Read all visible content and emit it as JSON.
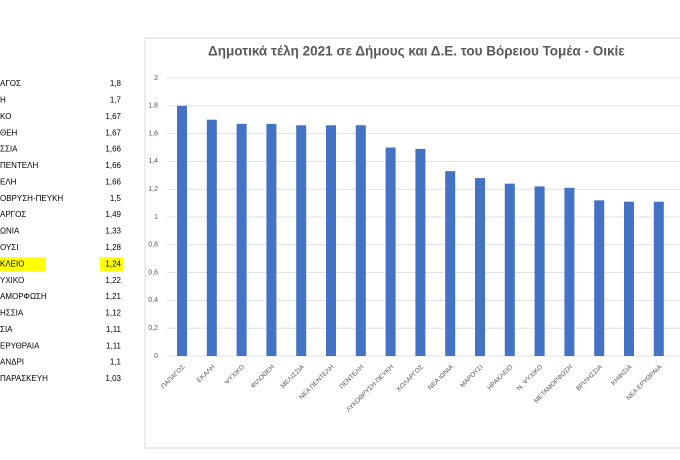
{
  "table": {
    "rows": [
      [
        "ΑΓΟΣ",
        "1,8"
      ],
      [
        "Η",
        "1,7"
      ],
      [
        "ΚΟ",
        "1,67"
      ],
      [
        "ΘΕΗ",
        "1,67"
      ],
      [
        "ΣΣΙΑ",
        "1,66"
      ],
      [
        "ΠΕΝΤΕΛΗ",
        "1,66"
      ],
      [
        "ΕΛΗ",
        "1,66"
      ],
      [
        "ΟΒΡΥΣΗ-ΠΕΥΚΗ",
        "1,5"
      ],
      [
        "ΑΡΓΟΣ",
        "1,49"
      ],
      [
        "ΩΝΙΑ",
        "1,33"
      ],
      [
        "ΟΥΣΙ",
        "1,28"
      ],
      [
        "ΚΛΕΙΟ",
        "1,24"
      ],
      [
        "ΥΧΙΚΟ",
        "1,22"
      ],
      [
        "ΑΜΟΡΦΩΣΗ",
        "1,21"
      ],
      [
        "ΗΣΣΙΑ",
        "1,12"
      ],
      [
        "ΣΙΑ",
        "1,11"
      ],
      [
        "ΕΡΥΘΡΑΙΑ",
        "1,11"
      ],
      [
        "ΑΝΔΡΙ",
        "1,1"
      ],
      [
        "ΠΑΡΑΣΚΕΥΗ",
        "1,03"
      ]
    ],
    "highlight_row": 11,
    "highlight_color": "#ffff00"
  },
  "chart_data": {
    "type": "bar",
    "title": "Δημοτικά τέλη 2021 σε Δήμους και Δ.Ε. του Βόρειου Τομέα - Οικίε",
    "categories": [
      "ΠΑΠΑΓΟΣ",
      "ΕΚΑΛΗ",
      "ΨΥΧΙΚΟ",
      "ΦΙΛΟΘΕΗ",
      "ΜΕΛΙΣΣΙΑ",
      "ΝΕΑ ΠΕΝΤΕΛΗ",
      "ΠΕΝΤΕΛΗ",
      "ΛΥΚΟΒΡΥΣΗ-ΠΕΥΚΗ",
      "ΧΟΛΑΡΓΟΣ",
      "ΝΕΑ ΙΩΝΙΑ",
      "ΜΑΡΟΥΣΙ",
      "ΗΡΑΚΛΕΙΟ",
      "Ν. ΨΥΧΙΚΟ",
      "ΜΕΤΑΜΟΡΦΩΣΗ",
      "ΒΡΙΛΗΣΣΙΑ",
      "ΚΗΦΙΣΙΑ",
      "ΝΕΑ ΕΡΥΘΡΑΙΑ"
    ],
    "values": [
      1.8,
      1.7,
      1.67,
      1.67,
      1.66,
      1.66,
      1.66,
      1.5,
      1.49,
      1.33,
      1.28,
      1.24,
      1.22,
      1.21,
      1.12,
      1.11,
      1.11
    ],
    "color": "#4472c4",
    "ylim": [
      0,
      2
    ],
    "yticks": [
      0,
      {
        "value": 0.2,
        "label": "0,2"
      },
      {
        "value": 0.4,
        "label": "0,4"
      },
      {
        "value": 0.6,
        "label": "0,6"
      },
      {
        "value": 0.8,
        "label": "0,8"
      },
      1,
      {
        "value": 1.2,
        "label": "1,2"
      },
      {
        "value": 1.4,
        "label": "1,4"
      },
      {
        "value": 1.6,
        "label": "1,6"
      },
      {
        "value": 1.8,
        "label": "1,8"
      },
      2
    ],
    "grid": true
  }
}
